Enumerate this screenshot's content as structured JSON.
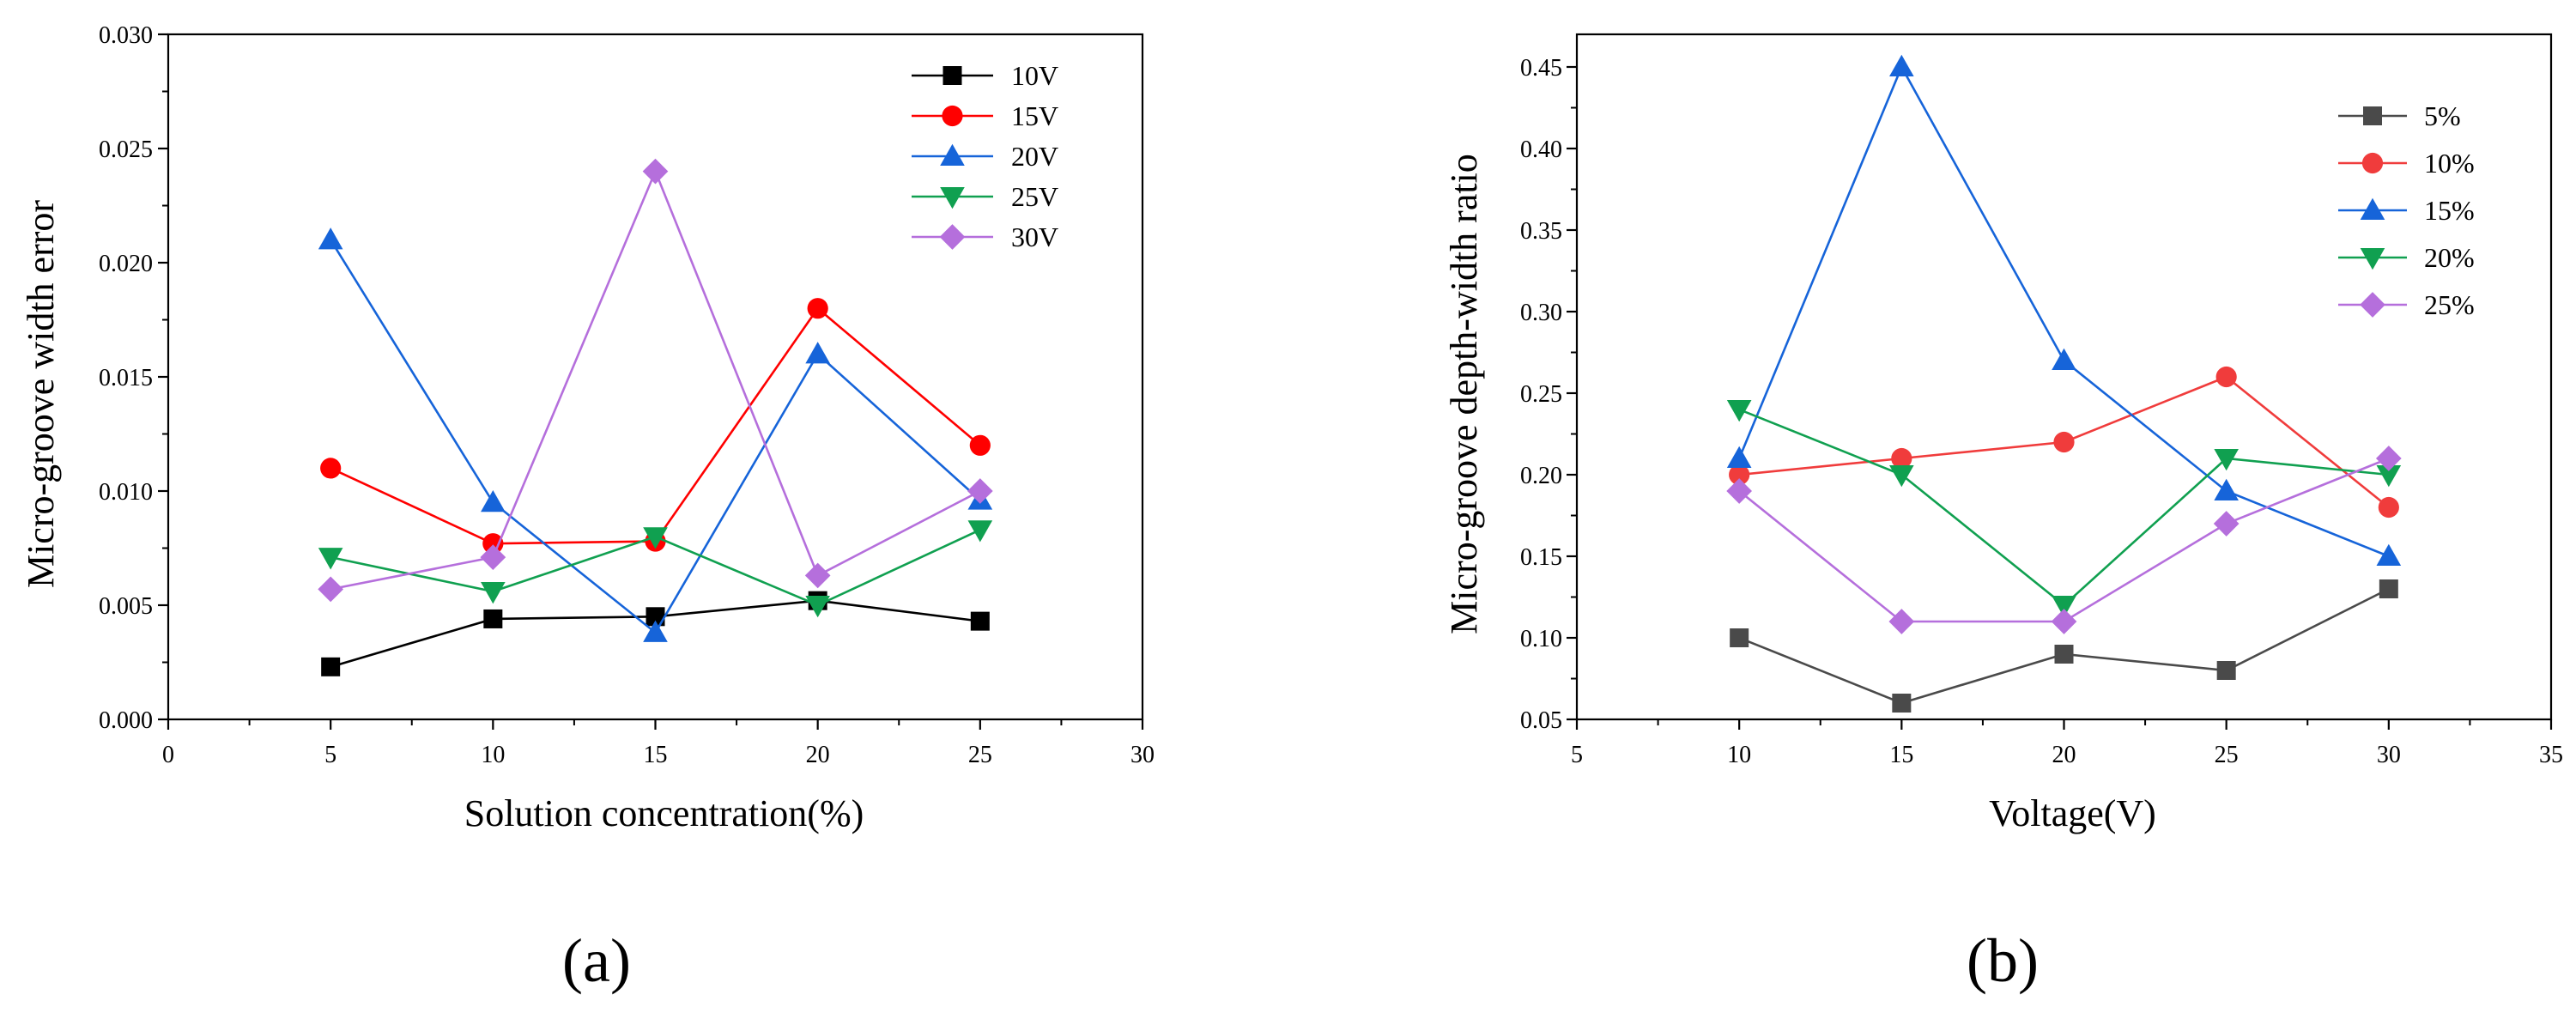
{
  "chart_data": [
    {
      "id": "a",
      "panel_label": "(a)",
      "type": "line",
      "xlabel": "Solution concentration(%)",
      "ylabel": "Micro-groove width error",
      "xlim": [
        0,
        30
      ],
      "ylim": [
        0,
        0.03
      ],
      "xticks": [
        0,
        5,
        10,
        15,
        20,
        25,
        30
      ],
      "yticks": [
        0,
        0.005,
        0.01,
        0.015,
        0.02,
        0.025,
        0.03
      ],
      "xtick_labels": [
        "0",
        "5",
        "10",
        "15",
        "20",
        "25",
        "30"
      ],
      "ytick_labels": [
        "0.000",
        "0.005",
        "0.010",
        "0.015",
        "0.020",
        "0.025",
        "0.030"
      ],
      "legend_position": "top-right",
      "series": [
        {
          "name": "10V",
          "color": "#000000",
          "marker": "square",
          "x": [
            5,
            10,
            15,
            20,
            25
          ],
          "y": [
            0.0023,
            0.0044,
            0.0045,
            0.0052,
            0.0043
          ]
        },
        {
          "name": "15V",
          "color": "#ff0000",
          "marker": "circle",
          "x": [
            5,
            10,
            15,
            20,
            25
          ],
          "y": [
            0.011,
            0.0077,
            0.0078,
            0.018,
            0.012
          ]
        },
        {
          "name": "20V",
          "color": "#1664d9",
          "marker": "triangle-up",
          "x": [
            5,
            10,
            15,
            20,
            25
          ],
          "y": [
            0.021,
            0.0095,
            0.0038,
            0.016,
            0.0096
          ]
        },
        {
          "name": "25V",
          "color": "#10a050",
          "marker": "triangle-down",
          "x": [
            5,
            10,
            15,
            20,
            25
          ],
          "y": [
            0.0071,
            0.0056,
            0.008,
            0.005,
            0.0083
          ]
        },
        {
          "name": "30V",
          "color": "#b56fdc",
          "marker": "diamond",
          "x": [
            5,
            10,
            15,
            20,
            25
          ],
          "y": [
            0.0057,
            0.0071,
            0.024,
            0.0063,
            0.01
          ]
        }
      ]
    },
    {
      "id": "b",
      "panel_label": "(b)",
      "type": "line",
      "xlabel": "Voltage(V)",
      "ylabel": "Micro-groove depth-width ratio",
      "xlim": [
        5,
        35
      ],
      "ylim": [
        0.05,
        0.47
      ],
      "xticks": [
        5,
        10,
        15,
        20,
        25,
        30,
        35
      ],
      "yticks": [
        0.05,
        0.1,
        0.15,
        0.2,
        0.25,
        0.3,
        0.35,
        0.4,
        0.45
      ],
      "xtick_labels": [
        "5",
        "10",
        "15",
        "20",
        "25",
        "30",
        "35"
      ],
      "ytick_labels": [
        "0.05",
        "0.10",
        "0.15",
        "0.20",
        "0.25",
        "0.30",
        "0.35",
        "0.40",
        "0.45"
      ],
      "legend_position": "top-right",
      "series": [
        {
          "name": "5%",
          "color": "#4a4a4a",
          "marker": "square",
          "x": [
            10,
            15,
            20,
            25,
            30
          ],
          "y": [
            0.1,
            0.06,
            0.09,
            0.08,
            0.13
          ]
        },
        {
          "name": "10%",
          "color": "#f03c3c",
          "marker": "circle",
          "x": [
            10,
            15,
            20,
            25,
            30
          ],
          "y": [
            0.2,
            0.21,
            0.22,
            0.26,
            0.18
          ]
        },
        {
          "name": "15%",
          "color": "#1664d9",
          "marker": "triangle-up",
          "x": [
            10,
            15,
            20,
            25,
            30
          ],
          "y": [
            0.21,
            0.45,
            0.27,
            0.19,
            0.15
          ]
        },
        {
          "name": "20%",
          "color": "#10a050",
          "marker": "triangle-down",
          "x": [
            10,
            15,
            20,
            25,
            30
          ],
          "y": [
            0.24,
            0.2,
            0.12,
            0.21,
            0.2
          ]
        },
        {
          "name": "25%",
          "color": "#b56fdc",
          "marker": "diamond",
          "x": [
            10,
            15,
            20,
            25,
            30
          ],
          "y": [
            0.19,
            0.11,
            0.11,
            0.17,
            0.21
          ]
        }
      ]
    }
  ]
}
